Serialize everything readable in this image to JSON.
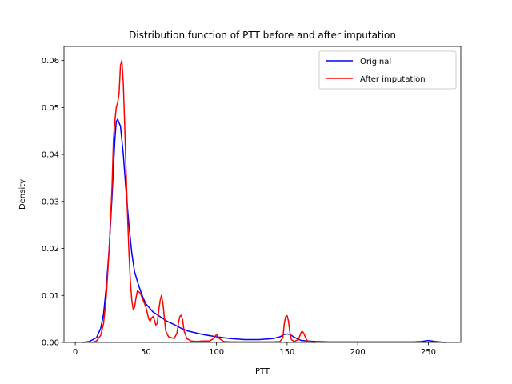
{
  "chart_data": {
    "type": "line",
    "title": "Distribution function of PTT before and after imputation",
    "xlabel": "PTT",
    "ylabel": "Density",
    "xlim": [
      -8,
      273
    ],
    "ylim": [
      0,
      0.063
    ],
    "x_ticks": [
      0,
      50,
      100,
      150,
      200,
      250
    ],
    "y_ticks": [
      0.0,
      0.01,
      0.02,
      0.03,
      0.04,
      0.05,
      0.06
    ],
    "x_tick_labels": [
      "0",
      "50",
      "100",
      "150",
      "200",
      "250"
    ],
    "y_tick_labels": [
      "0.00",
      "0.01",
      "0.02",
      "0.03",
      "0.04",
      "0.05",
      "0.06"
    ],
    "grid": false,
    "legend": {
      "placement": "top-right"
    },
    "series": [
      {
        "name": "Original",
        "color": "#0000ff",
        "points": [
          [
            5,
            0
          ],
          [
            10,
            0.0002
          ],
          [
            15,
            0.001
          ],
          [
            18,
            0.003
          ],
          [
            20,
            0.006
          ],
          [
            22,
            0.012
          ],
          [
            24,
            0.02
          ],
          [
            26,
            0.031
          ],
          [
            28,
            0.043
          ],
          [
            29,
            0.047
          ],
          [
            30,
            0.0475
          ],
          [
            32,
            0.046
          ],
          [
            34,
            0.04
          ],
          [
            36,
            0.032
          ],
          [
            38,
            0.025
          ],
          [
            40,
            0.019
          ],
          [
            42,
            0.015
          ],
          [
            45,
            0.012
          ],
          [
            48,
            0.0095
          ],
          [
            50,
            0.0082
          ],
          [
            55,
            0.0065
          ],
          [
            60,
            0.0055
          ],
          [
            65,
            0.0045
          ],
          [
            70,
            0.0038
          ],
          [
            75,
            0.003
          ],
          [
            80,
            0.0024
          ],
          [
            90,
            0.0017
          ],
          [
            100,
            0.0012
          ],
          [
            110,
            0.0008
          ],
          [
            120,
            0.0006
          ],
          [
            130,
            0.0006
          ],
          [
            140,
            0.0008
          ],
          [
            145,
            0.0012
          ],
          [
            148,
            0.0017
          ],
          [
            150,
            0.0018
          ],
          [
            152,
            0.0017
          ],
          [
            155,
            0.0011
          ],
          [
            160,
            0.0004
          ],
          [
            170,
            0.0002
          ],
          [
            180,
            0.0001
          ],
          [
            200,
            0.0001
          ],
          [
            220,
            0.0001
          ],
          [
            240,
            0.0001
          ],
          [
            245,
            0.0002
          ],
          [
            250,
            0.0004
          ],
          [
            255,
            0.0002
          ],
          [
            262,
            0
          ]
        ]
      },
      {
        "name": "After imputation",
        "color": "#ff0000",
        "points": [
          [
            12,
            0
          ],
          [
            15,
            0.0003
          ],
          [
            18,
            0.0015
          ],
          [
            20,
            0.004
          ],
          [
            22,
            0.01
          ],
          [
            24,
            0.02
          ],
          [
            26,
            0.033
          ],
          [
            27,
            0.043
          ],
          [
            28,
            0.047
          ],
          [
            29,
            0.05
          ],
          [
            30,
            0.051
          ],
          [
            31,
            0.053
          ],
          [
            32,
            0.059
          ],
          [
            33,
            0.06
          ],
          [
            34,
            0.055
          ],
          [
            35,
            0.046
          ],
          [
            36,
            0.036
          ],
          [
            37,
            0.027
          ],
          [
            38,
            0.019
          ],
          [
            39,
            0.013
          ],
          [
            40,
            0.009
          ],
          [
            41,
            0.007
          ],
          [
            42,
            0.0075
          ],
          [
            43,
            0.0095
          ],
          [
            44,
            0.011
          ],
          [
            46,
            0.0105
          ],
          [
            48,
            0.009
          ],
          [
            50,
            0.0075
          ],
          [
            52,
            0.005
          ],
          [
            53,
            0.0045
          ],
          [
            54,
            0.0052
          ],
          [
            55,
            0.0055
          ],
          [
            56,
            0.0048
          ],
          [
            57,
            0.0037
          ],
          [
            58,
            0.004
          ],
          [
            59,
            0.0065
          ],
          [
            60,
            0.0088
          ],
          [
            61,
            0.01
          ],
          [
            62,
            0.0085
          ],
          [
            63,
            0.0055
          ],
          [
            64,
            0.0025
          ],
          [
            66,
            0.0012
          ],
          [
            68,
            0.001
          ],
          [
            70,
            0.0008
          ],
          [
            72,
            0.002
          ],
          [
            73,
            0.004
          ],
          [
            74,
            0.0055
          ],
          [
            75,
            0.0058
          ],
          [
            76,
            0.0048
          ],
          [
            77,
            0.0025
          ],
          [
            79,
            0.0008
          ],
          [
            82,
            0.0003
          ],
          [
            86,
            0.0002
          ],
          [
            90,
            0.0003
          ],
          [
            95,
            0.0003
          ],
          [
            98,
            0.0008
          ],
          [
            100,
            0.0017
          ],
          [
            102,
            0.0008
          ],
          [
            105,
            0.0002
          ],
          [
            110,
            0.0001
          ],
          [
            120,
            0.0001
          ],
          [
            130,
            0.0001
          ],
          [
            140,
            0.0001
          ],
          [
            145,
            0.0002
          ],
          [
            147,
            0.001
          ],
          [
            148,
            0.004
          ],
          [
            149,
            0.0055
          ],
          [
            150,
            0.0057
          ],
          [
            151,
            0.0045
          ],
          [
            152,
            0.002
          ],
          [
            153,
            0.0006
          ],
          [
            155,
            0.0002
          ],
          [
            158,
            0.0006
          ],
          [
            160,
            0.0022
          ],
          [
            161,
            0.0023
          ],
          [
            162,
            0.0018
          ],
          [
            164,
            0.0004
          ],
          [
            167,
            0.0001
          ],
          [
            170,
            0
          ]
        ]
      }
    ]
  }
}
